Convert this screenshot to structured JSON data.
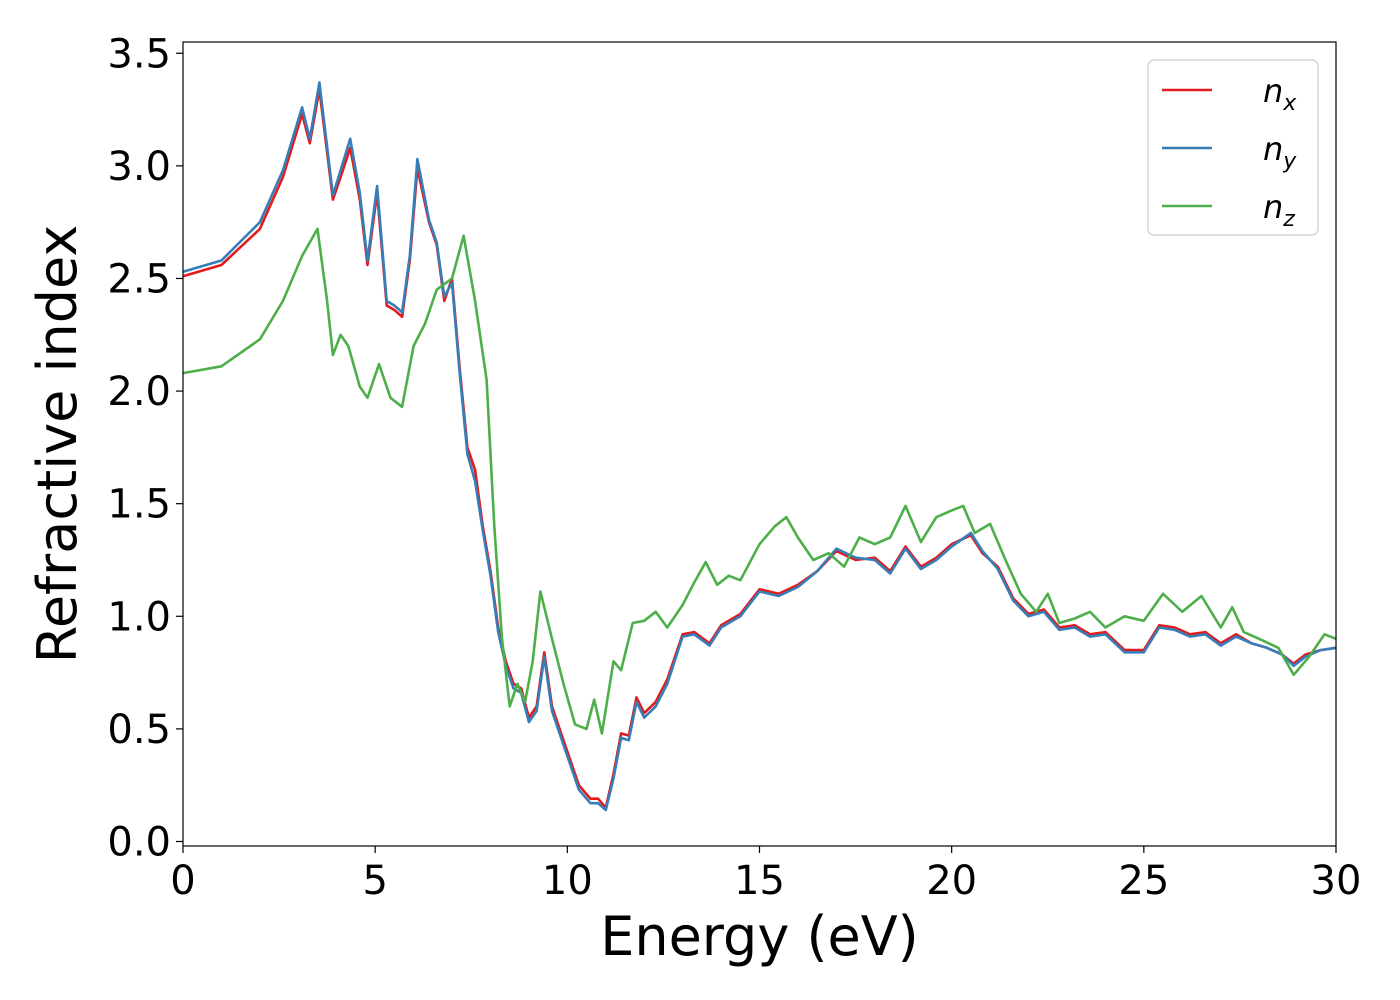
{
  "chart_data": {
    "type": "line",
    "xlabel": "Energy (eV)",
    "ylabel": "Refractive index",
    "xlim": [
      0,
      30
    ],
    "ylim": [
      -0.02,
      3.55
    ],
    "x_ticks": [
      0,
      5,
      10,
      15,
      20,
      25,
      30
    ],
    "x_tick_labels": [
      "0",
      "5",
      "10",
      "15",
      "20",
      "25",
      "30"
    ],
    "y_ticks": [
      0.0,
      0.5,
      1.0,
      1.5,
      2.0,
      2.5,
      3.0,
      3.5
    ],
    "y_tick_labels": [
      "0.0",
      "0.5",
      "1.0",
      "1.5",
      "2.0",
      "2.5",
      "3.0",
      "3.5"
    ],
    "grid": false,
    "legend_position": "top-right",
    "series": [
      {
        "name": "n",
        "subscript": "x",
        "color": "#e41a1c",
        "points": [
          [
            0,
            2.51
          ],
          [
            1,
            2.56
          ],
          [
            2,
            2.72
          ],
          [
            2.6,
            2.95
          ],
          [
            3.1,
            3.23
          ],
          [
            3.3,
            3.1
          ],
          [
            3.55,
            3.34
          ],
          [
            3.9,
            2.85
          ],
          [
            4.1,
            2.95
          ],
          [
            4.35,
            3.08
          ],
          [
            4.6,
            2.85
          ],
          [
            4.8,
            2.56
          ],
          [
            5.05,
            2.88
          ],
          [
            5.3,
            2.38
          ],
          [
            5.5,
            2.36
          ],
          [
            5.7,
            2.33
          ],
          [
            5.9,
            2.58
          ],
          [
            6.1,
            2.99
          ],
          [
            6.4,
            2.75
          ],
          [
            6.6,
            2.65
          ],
          [
            6.8,
            2.4
          ],
          [
            7.0,
            2.5
          ],
          [
            7.2,
            2.1
          ],
          [
            7.4,
            1.75
          ],
          [
            7.6,
            1.65
          ],
          [
            7.8,
            1.4
          ],
          [
            8.0,
            1.2
          ],
          [
            8.2,
            0.95
          ],
          [
            8.4,
            0.8
          ],
          [
            8.6,
            0.7
          ],
          [
            8.8,
            0.68
          ],
          [
            9.0,
            0.55
          ],
          [
            9.2,
            0.6
          ],
          [
            9.4,
            0.84
          ],
          [
            9.6,
            0.6
          ],
          [
            9.8,
            0.5
          ],
          [
            10.0,
            0.4
          ],
          [
            10.3,
            0.25
          ],
          [
            10.6,
            0.19
          ],
          [
            10.8,
            0.19
          ],
          [
            11.0,
            0.15
          ],
          [
            11.2,
            0.3
          ],
          [
            11.4,
            0.48
          ],
          [
            11.6,
            0.47
          ],
          [
            11.8,
            0.64
          ],
          [
            12.0,
            0.57
          ],
          [
            12.3,
            0.62
          ],
          [
            12.6,
            0.72
          ],
          [
            13.0,
            0.92
          ],
          [
            13.3,
            0.93
          ],
          [
            13.7,
            0.88
          ],
          [
            14.0,
            0.96
          ],
          [
            14.5,
            1.01
          ],
          [
            15.0,
            1.12
          ],
          [
            15.5,
            1.1
          ],
          [
            16.0,
            1.14
          ],
          [
            16.5,
            1.2
          ],
          [
            17.0,
            1.29
          ],
          [
            17.5,
            1.25
          ],
          [
            18.0,
            1.26
          ],
          [
            18.4,
            1.2
          ],
          [
            18.8,
            1.31
          ],
          [
            19.2,
            1.22
          ],
          [
            19.6,
            1.26
          ],
          [
            20.0,
            1.32
          ],
          [
            20.5,
            1.36
          ],
          [
            20.8,
            1.28
          ],
          [
            21.2,
            1.22
          ],
          [
            21.6,
            1.08
          ],
          [
            22.0,
            1.01
          ],
          [
            22.4,
            1.03
          ],
          [
            22.8,
            0.95
          ],
          [
            23.2,
            0.96
          ],
          [
            23.6,
            0.92
          ],
          [
            24.0,
            0.93
          ],
          [
            24.5,
            0.85
          ],
          [
            25.0,
            0.85
          ],
          [
            25.4,
            0.96
          ],
          [
            25.8,
            0.95
          ],
          [
            26.2,
            0.92
          ],
          [
            26.6,
            0.93
          ],
          [
            27.0,
            0.88
          ],
          [
            27.4,
            0.92
          ],
          [
            27.8,
            0.88
          ],
          [
            28.2,
            0.86
          ],
          [
            28.6,
            0.83
          ],
          [
            28.9,
            0.79
          ],
          [
            29.2,
            0.83
          ],
          [
            29.6,
            0.85
          ],
          [
            30.0,
            0.86
          ]
        ]
      },
      {
        "name": "n",
        "subscript": "y",
        "color": "#377eb8",
        "points": [
          [
            0,
            2.53
          ],
          [
            1,
            2.58
          ],
          [
            2,
            2.75
          ],
          [
            2.6,
            2.98
          ],
          [
            3.1,
            3.26
          ],
          [
            3.3,
            3.12
          ],
          [
            3.55,
            3.37
          ],
          [
            3.9,
            2.87
          ],
          [
            4.1,
            2.98
          ],
          [
            4.35,
            3.12
          ],
          [
            4.6,
            2.88
          ],
          [
            4.8,
            2.58
          ],
          [
            5.05,
            2.91
          ],
          [
            5.3,
            2.4
          ],
          [
            5.5,
            2.38
          ],
          [
            5.7,
            2.35
          ],
          [
            5.9,
            2.6
          ],
          [
            6.1,
            3.03
          ],
          [
            6.4,
            2.76
          ],
          [
            6.6,
            2.66
          ],
          [
            6.8,
            2.42
          ],
          [
            7.0,
            2.48
          ],
          [
            7.2,
            2.08
          ],
          [
            7.4,
            1.72
          ],
          [
            7.6,
            1.6
          ],
          [
            7.8,
            1.38
          ],
          [
            8.0,
            1.18
          ],
          [
            8.2,
            0.93
          ],
          [
            8.4,
            0.78
          ],
          [
            8.6,
            0.68
          ],
          [
            8.8,
            0.66
          ],
          [
            9.0,
            0.53
          ],
          [
            9.2,
            0.58
          ],
          [
            9.4,
            0.82
          ],
          [
            9.6,
            0.58
          ],
          [
            9.8,
            0.48
          ],
          [
            10.0,
            0.38
          ],
          [
            10.3,
            0.23
          ],
          [
            10.6,
            0.17
          ],
          [
            10.8,
            0.17
          ],
          [
            11.0,
            0.14
          ],
          [
            11.2,
            0.28
          ],
          [
            11.4,
            0.46
          ],
          [
            11.6,
            0.45
          ],
          [
            11.8,
            0.62
          ],
          [
            12.0,
            0.55
          ],
          [
            12.3,
            0.6
          ],
          [
            12.6,
            0.7
          ],
          [
            13.0,
            0.91
          ],
          [
            13.3,
            0.92
          ],
          [
            13.7,
            0.87
          ],
          [
            14.0,
            0.95
          ],
          [
            14.5,
            1.0
          ],
          [
            15.0,
            1.11
          ],
          [
            15.5,
            1.09
          ],
          [
            16.0,
            1.13
          ],
          [
            16.5,
            1.2
          ],
          [
            17.0,
            1.3
          ],
          [
            17.5,
            1.26
          ],
          [
            18.0,
            1.25
          ],
          [
            18.4,
            1.19
          ],
          [
            18.8,
            1.3
          ],
          [
            19.2,
            1.21
          ],
          [
            19.6,
            1.25
          ],
          [
            20.0,
            1.31
          ],
          [
            20.5,
            1.37
          ],
          [
            20.8,
            1.29
          ],
          [
            21.2,
            1.21
          ],
          [
            21.6,
            1.07
          ],
          [
            22.0,
            1.0
          ],
          [
            22.4,
            1.02
          ],
          [
            22.8,
            0.94
          ],
          [
            23.2,
            0.95
          ],
          [
            23.6,
            0.91
          ],
          [
            24.0,
            0.92
          ],
          [
            24.5,
            0.84
          ],
          [
            25.0,
            0.84
          ],
          [
            25.4,
            0.95
          ],
          [
            25.8,
            0.94
          ],
          [
            26.2,
            0.91
          ],
          [
            26.6,
            0.92
          ],
          [
            27.0,
            0.87
          ],
          [
            27.4,
            0.91
          ],
          [
            27.8,
            0.88
          ],
          [
            28.2,
            0.86
          ],
          [
            28.6,
            0.83
          ],
          [
            28.9,
            0.78
          ],
          [
            29.2,
            0.82
          ],
          [
            29.6,
            0.85
          ],
          [
            30.0,
            0.86
          ]
        ]
      },
      {
        "name": "n",
        "subscript": "z",
        "color": "#4daf4a",
        "points": [
          [
            0,
            2.08
          ],
          [
            1,
            2.11
          ],
          [
            2,
            2.23
          ],
          [
            2.6,
            2.4
          ],
          [
            3.1,
            2.6
          ],
          [
            3.5,
            2.72
          ],
          [
            3.75,
            2.4
          ],
          [
            3.9,
            2.16
          ],
          [
            4.1,
            2.25
          ],
          [
            4.3,
            2.2
          ],
          [
            4.6,
            2.02
          ],
          [
            4.8,
            1.97
          ],
          [
            5.1,
            2.12
          ],
          [
            5.4,
            1.97
          ],
          [
            5.7,
            1.93
          ],
          [
            6.0,
            2.2
          ],
          [
            6.3,
            2.3
          ],
          [
            6.6,
            2.45
          ],
          [
            7.0,
            2.5
          ],
          [
            7.3,
            2.69
          ],
          [
            7.6,
            2.4
          ],
          [
            7.9,
            2.05
          ],
          [
            8.1,
            1.4
          ],
          [
            8.3,
            0.9
          ],
          [
            8.5,
            0.6
          ],
          [
            8.7,
            0.7
          ],
          [
            8.9,
            0.62
          ],
          [
            9.1,
            0.8
          ],
          [
            9.3,
            1.11
          ],
          [
            9.6,
            0.9
          ],
          [
            9.9,
            0.7
          ],
          [
            10.2,
            0.52
          ],
          [
            10.5,
            0.5
          ],
          [
            10.7,
            0.63
          ],
          [
            10.9,
            0.48
          ],
          [
            11.2,
            0.8
          ],
          [
            11.4,
            0.76
          ],
          [
            11.7,
            0.97
          ],
          [
            12.0,
            0.98
          ],
          [
            12.3,
            1.02
          ],
          [
            12.6,
            0.95
          ],
          [
            13.0,
            1.05
          ],
          [
            13.3,
            1.15
          ],
          [
            13.6,
            1.24
          ],
          [
            13.9,
            1.14
          ],
          [
            14.2,
            1.18
          ],
          [
            14.5,
            1.16
          ],
          [
            15.0,
            1.32
          ],
          [
            15.4,
            1.4
          ],
          [
            15.7,
            1.44
          ],
          [
            16.0,
            1.35
          ],
          [
            16.4,
            1.25
          ],
          [
            16.8,
            1.28
          ],
          [
            17.2,
            1.22
          ],
          [
            17.6,
            1.35
          ],
          [
            18.0,
            1.32
          ],
          [
            18.4,
            1.35
          ],
          [
            18.8,
            1.49
          ],
          [
            19.2,
            1.33
          ],
          [
            19.6,
            1.44
          ],
          [
            20.0,
            1.47
          ],
          [
            20.3,
            1.49
          ],
          [
            20.6,
            1.37
          ],
          [
            21.0,
            1.41
          ],
          [
            21.4,
            1.25
          ],
          [
            21.8,
            1.1
          ],
          [
            22.2,
            1.02
          ],
          [
            22.5,
            1.1
          ],
          [
            22.8,
            0.97
          ],
          [
            23.2,
            0.99
          ],
          [
            23.6,
            1.02
          ],
          [
            24.0,
            0.95
          ],
          [
            24.5,
            1.0
          ],
          [
            25.0,
            0.98
          ],
          [
            25.5,
            1.1
          ],
          [
            26.0,
            1.02
          ],
          [
            26.5,
            1.09
          ],
          [
            27.0,
            0.95
          ],
          [
            27.3,
            1.04
          ],
          [
            27.6,
            0.93
          ],
          [
            28.0,
            0.9
          ],
          [
            28.5,
            0.86
          ],
          [
            28.9,
            0.74
          ],
          [
            29.3,
            0.82
          ],
          [
            29.7,
            0.92
          ],
          [
            30.0,
            0.9
          ]
        ]
      }
    ]
  }
}
